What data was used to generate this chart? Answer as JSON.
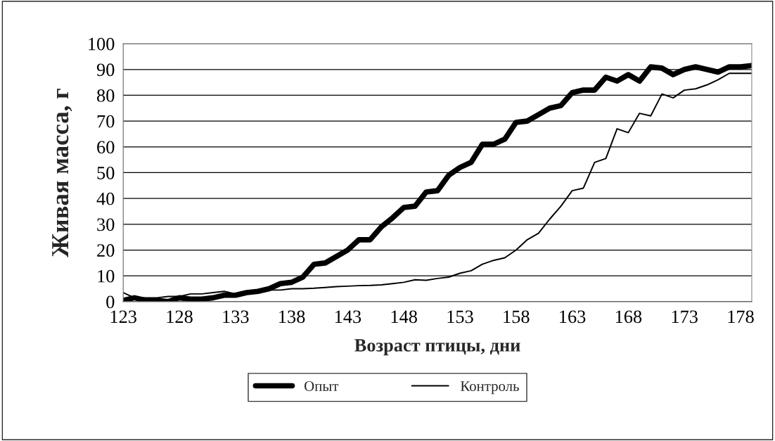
{
  "chart_data": {
    "type": "line",
    "xlabel": "Возраст птицы, дни",
    "ylabel": "Живая масса, г",
    "x": [
      123,
      124,
      125,
      126,
      127,
      128,
      129,
      130,
      131,
      132,
      133,
      134,
      135,
      136,
      137,
      138,
      139,
      140,
      141,
      142,
      143,
      144,
      145,
      146,
      147,
      148,
      149,
      150,
      151,
      152,
      153,
      154,
      155,
      156,
      157,
      158,
      159,
      160,
      161,
      162,
      163,
      164,
      165,
      166,
      167,
      168,
      169,
      170,
      171,
      172,
      173,
      174,
      175,
      176,
      177,
      178,
      179
    ],
    "series": [
      {
        "name": "Опыт",
        "color": "#000000",
        "values": [
          0.5,
          1.5,
          0.5,
          0.5,
          0,
          1.5,
          1,
          1,
          1.5,
          2.5,
          2.5,
          3.5,
          4,
          5,
          7,
          7.5,
          9.5,
          14.5,
          15,
          17.5,
          20,
          24,
          24,
          29,
          32.5,
          36.5,
          37,
          42.5,
          43,
          49,
          52,
          54,
          61,
          61,
          63,
          69.5,
          70,
          72.5,
          75,
          76,
          81,
          82,
          82,
          87,
          85.5,
          88,
          85.5,
          91,
          90.5,
          88,
          90,
          91,
          90,
          89,
          91,
          91,
          91.5
        ]
      },
      {
        "name": "Контроль",
        "color": "#000000",
        "values": [
          3.5,
          1.5,
          1.5,
          1.5,
          2,
          2,
          3,
          3,
          3.5,
          4,
          3,
          3.5,
          4,
          4.5,
          4.5,
          5,
          5,
          5.2,
          5.5,
          5.8,
          6,
          6.2,
          6.3,
          6.5,
          7,
          7.5,
          8.5,
          8.3,
          9,
          9.5,
          11,
          12,
          14.5,
          16,
          17,
          20,
          24,
          26.5,
          32,
          37,
          43,
          44,
          54,
          55.5,
          67,
          65.5,
          73,
          72,
          80.5,
          79,
          82,
          82.5,
          84,
          86,
          88.5,
          88.5,
          88.5
        ]
      }
    ],
    "xlim": [
      123,
      179
    ],
    "xticks": [
      123,
      128,
      133,
      138,
      143,
      148,
      153,
      158,
      163,
      168,
      173,
      178
    ],
    "ylim": [
      0,
      100
    ],
    "yticks": [
      0,
      10,
      20,
      30,
      40,
      50,
      60,
      70,
      80,
      90,
      100
    ],
    "grid": "y",
    "legend": "bottom",
    "marker": "none",
    "line_style": "solid"
  }
}
